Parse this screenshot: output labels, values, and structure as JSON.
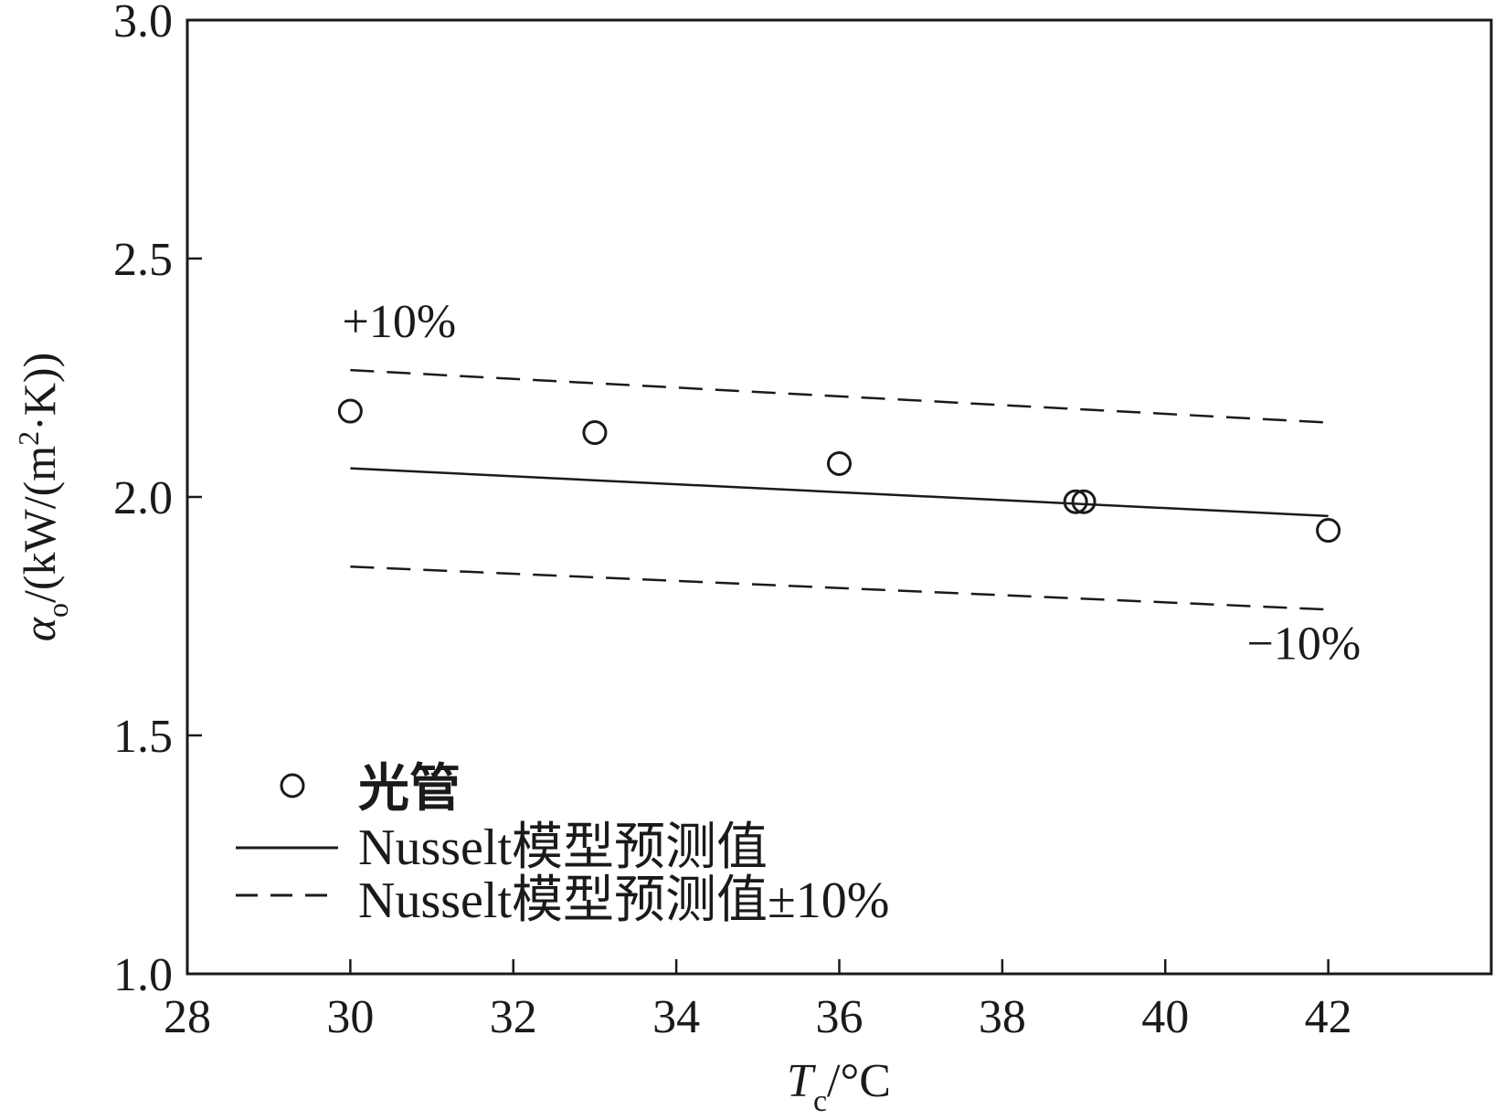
{
  "chart_data": {
    "type": "scatter",
    "title": "",
    "xlabel": {
      "symbol": "T",
      "subscript": "c",
      "unit": "/°C"
    },
    "ylabel": {
      "symbol": "α",
      "subscript": "o",
      "unit_pre": "/(kW/(m",
      "unit_sup": "2",
      "unit_post": "·K))"
    },
    "xlim": [
      28,
      44
    ],
    "ylim": [
      1.0,
      3.0
    ],
    "xticks": [
      28,
      30,
      32,
      34,
      36,
      38,
      40,
      42
    ],
    "xtick_labels": [
      "28",
      "30",
      "32",
      "34",
      "36",
      "38",
      "40",
      "42"
    ],
    "yticks": [
      1.0,
      1.5,
      2.0,
      2.5,
      3.0
    ],
    "ytick_labels": [
      "1.0",
      "1.5",
      "2.0",
      "2.5",
      "3.0"
    ],
    "grid": false,
    "legend_position": "bottom-left",
    "series": [
      {
        "name": "光管",
        "kind": "scatter",
        "marker": "open-circle",
        "points": [
          {
            "x": 30.0,
            "y": 2.18
          },
          {
            "x": 33.0,
            "y": 2.135
          },
          {
            "x": 36.0,
            "y": 2.07
          },
          {
            "x": 38.9,
            "y": 1.99
          },
          {
            "x": 39.0,
            "y": 1.99
          },
          {
            "x": 42.0,
            "y": 1.93
          }
        ]
      },
      {
        "name": "Nusselt模型预测值",
        "kind": "line",
        "style": "solid",
        "points": [
          {
            "x": 30.0,
            "y": 2.06
          },
          {
            "x": 42.0,
            "y": 1.96
          }
        ]
      },
      {
        "name": "Nusselt模型预测值±10%",
        "kind": "line",
        "style": "dashed",
        "points": [
          {
            "x": 30.0,
            "y": 2.266
          },
          {
            "x": 42.0,
            "y": 2.156
          }
        ]
      },
      {
        "name": "Nusselt模型预测值±10%",
        "kind": "line",
        "style": "dashed",
        "legend": false,
        "points": [
          {
            "x": 30.0,
            "y": 1.854
          },
          {
            "x": 42.0,
            "y": 1.764
          }
        ]
      }
    ],
    "annotations": [
      {
        "text": "+10%",
        "x": 30.6,
        "y": 2.335
      },
      {
        "text": "−10%",
        "x": 41.7,
        "y": 1.66
      }
    ]
  }
}
